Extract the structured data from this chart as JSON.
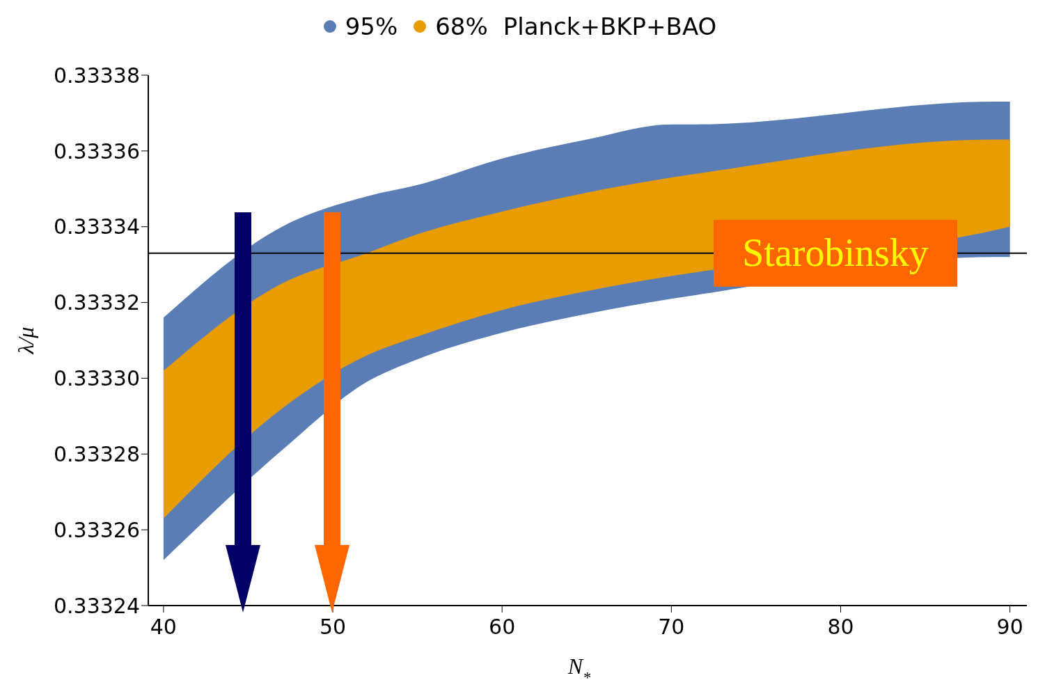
{
  "chart_data": {
    "type": "area",
    "xlabel": "N$_{*}$",
    "ylabel": "λ/μ",
    "legend_title": "Planck+BKP+BAO",
    "legend": "top",
    "x": [
      40,
      47,
      52,
      55,
      60,
      65,
      70,
      71.5,
      89,
      90
    ],
    "series": [
      {
        "name": "95%",
        "color": "#5a7db5",
        "values": [
          null,
          null,
          null,
          null,
          null,
          null,
          null,
          null,
          null,
          null
        ],
        "lower": [
          0.333252,
          0.333281,
          0.333299,
          0.333305,
          0.333312,
          0.333317,
          0.333321,
          0.333322,
          0.333332,
          0.333332
        ],
        "upper": [
          0.333316,
          0.33334,
          0.333348,
          0.333351,
          0.333358,
          0.333363,
          0.333367,
          0.333367,
          0.333373,
          0.333373
        ]
      },
      {
        "name": "68%",
        "color": "#e89c00",
        "values": [
          null,
          null,
          null,
          null,
          null,
          null,
          null,
          null,
          null,
          null
        ],
        "lower": [
          0.333263,
          0.333292,
          0.333306,
          0.333311,
          0.333318,
          0.333323,
          0.333327,
          0.333328,
          0.333339,
          0.33334
        ],
        "upper": [
          0.333302,
          0.333325,
          0.333333,
          0.333338,
          0.333344,
          0.333349,
          0.333353,
          0.333354,
          0.333363,
          0.333363
        ]
      }
    ],
    "xlim": [
      39.1,
      91
    ],
    "xticks": [
      40,
      50,
      60,
      70,
      80,
      90
    ],
    "ylim": [
      0.33324,
      0.33338
    ],
    "yticks": [
      0.33324,
      0.33326,
      0.33328,
      {
        "value": 0.3333,
        "label": "0.33330"
      },
      0.33332,
      0.33334,
      0.33336,
      0.33338
    ],
    "ref_lines": [
      {
        "axis": "y",
        "value": 0.333333,
        "label": "Starobinsky",
        "color": "#000000"
      }
    ]
  }
}
